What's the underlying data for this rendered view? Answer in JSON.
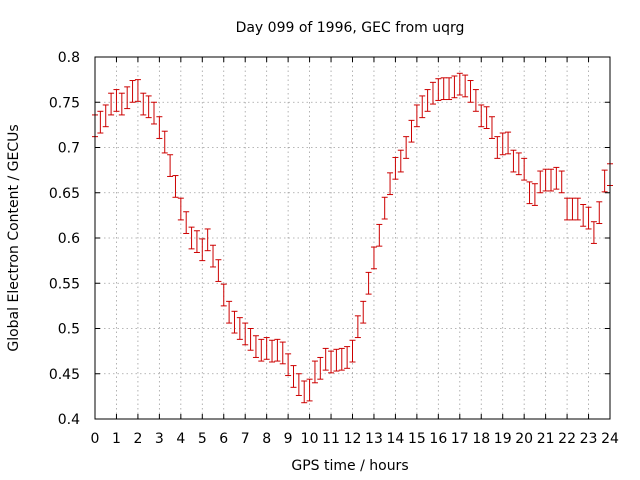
{
  "chart_data": {
    "type": "scatter",
    "title": "Day 099 of 1996, GEC from uqrg",
    "xlabel": "GPS time / hours",
    "ylabel": "Global Electron Content / GECUs",
    "xlim": [
      0,
      24
    ],
    "ylim": [
      0.4,
      0.8
    ],
    "x_ticks": [
      "0",
      "1",
      "2",
      "3",
      "4",
      "5",
      "6",
      "7",
      "8",
      "9",
      "10",
      "11",
      "12",
      "13",
      "14",
      "15",
      "16",
      "17",
      "18",
      "19",
      "20",
      "21",
      "22",
      "23",
      "24"
    ],
    "y_ticks": [
      "0.4",
      "0.45",
      "0.5",
      "0.55",
      "0.6",
      "0.65",
      "0.7",
      "0.75",
      "0.8"
    ],
    "grid": true,
    "series": [
      {
        "name": "GEC",
        "color": "#cc0000",
        "error": 0.012,
        "x": [
          0,
          0.25,
          0.5,
          0.75,
          1,
          1.25,
          1.5,
          1.75,
          2,
          2.25,
          2.5,
          2.75,
          3,
          3.25,
          3.5,
          3.75,
          4,
          4.25,
          4.5,
          4.75,
          5,
          5.25,
          5.5,
          5.75,
          6,
          6.25,
          6.5,
          6.75,
          7,
          7.25,
          7.5,
          7.75,
          8,
          8.25,
          8.5,
          8.75,
          9,
          9.25,
          9.5,
          9.75,
          10,
          10.25,
          10.5,
          10.75,
          11,
          11.25,
          11.5,
          11.75,
          12,
          12.25,
          12.5,
          12.75,
          13,
          13.25,
          13.5,
          13.75,
          14,
          14.25,
          14.5,
          14.75,
          15,
          15.25,
          15.5,
          15.75,
          16,
          16.25,
          16.5,
          16.75,
          17,
          17.25,
          17.5,
          17.75,
          18,
          18.25,
          18.5,
          18.75,
          19,
          19.25,
          19.5,
          19.75,
          20,
          20.25,
          20.5,
          20.75,
          21,
          21.25,
          21.5,
          21.75,
          22,
          22.25,
          22.5,
          22.75,
          23,
          23.25,
          23.5,
          23.75,
          24
        ],
        "values": [
          0.724,
          0.728,
          0.735,
          0.748,
          0.752,
          0.748,
          0.755,
          0.762,
          0.763,
          0.748,
          0.745,
          0.738,
          0.722,
          0.706,
          0.68,
          0.657,
          0.632,
          0.617,
          0.6,
          0.596,
          0.587,
          0.598,
          0.58,
          0.564,
          0.537,
          0.518,
          0.507,
          0.5,
          0.494,
          0.488,
          0.48,
          0.476,
          0.478,
          0.475,
          0.476,
          0.473,
          0.46,
          0.447,
          0.438,
          0.43,
          0.432,
          0.452,
          0.456,
          0.466,
          0.463,
          0.465,
          0.466,
          0.468,
          0.475,
          0.502,
          0.518,
          0.55,
          0.578,
          0.603,
          0.633,
          0.66,
          0.677,
          0.685,
          0.7,
          0.718,
          0.735,
          0.745,
          0.752,
          0.76,
          0.764,
          0.765,
          0.765,
          0.767,
          0.77,
          0.768,
          0.762,
          0.752,
          0.735,
          0.733,
          0.722,
          0.7,
          0.704,
          0.705,
          0.685,
          0.682,
          0.676,
          0.65,
          0.648,
          0.662,
          0.664,
          0.664,
          0.666,
          0.662,
          0.632,
          0.632,
          0.632,
          0.625,
          0.622,
          0.606,
          0.628,
          0.663,
          0.67
        ]
      }
    ]
  }
}
